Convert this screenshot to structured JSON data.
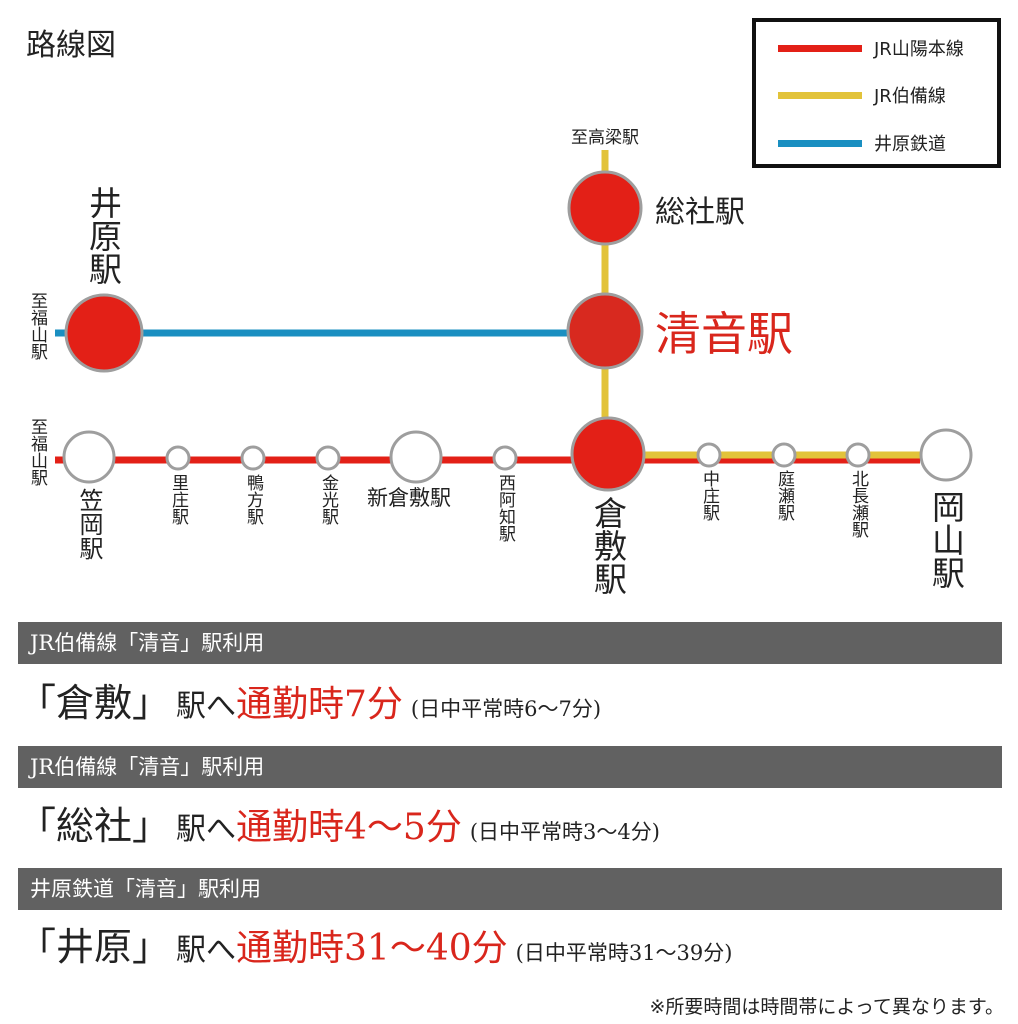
{
  "title": "路線図",
  "legend": {
    "items": [
      {
        "label": "JR山陽本線",
        "color": "#e32017"
      },
      {
        "label": "JR伯備線",
        "color": "#e2c33a"
      },
      {
        "label": "井原鉄道",
        "color": "#1a8fc1"
      }
    ]
  },
  "map": {
    "colors": {
      "sanyo": "#e32017",
      "hakubi": "#e2c33a",
      "ibara": "#1a8fc1",
      "major_station": "#e32017",
      "minor_station": "#ffffff",
      "station_ring": "#9e9e9e",
      "highlight_text": "#d9261c"
    },
    "direction_labels": {
      "takahashi": "至高梁駅",
      "fukuyama_ibara": "至福山駅",
      "fukuyama_sanyo": "至福山駅"
    },
    "stations": {
      "soja": "総社駅",
      "kiyone": "清音駅",
      "ibara": "井原駅",
      "kurashiki": "倉敷駅",
      "kasaoka": "笠岡駅",
      "satosho": "里庄駅",
      "kamogata": "鴨方駅",
      "konko": "金光駅",
      "shinkurashiki": "新倉敷駅",
      "nishiachi": "西阿知駅",
      "nakasho": "中庄駅",
      "niwase": "庭瀬駅",
      "kitanagase": "北長瀬駅",
      "okayama": "岡山駅"
    }
  },
  "routes": [
    {
      "header": "JR伯備線「清音」駅利用",
      "station": "「倉敷」",
      "to": "駅へ",
      "time": "通勤時7分",
      "note": "(日中平常時6〜7分)"
    },
    {
      "header": "JR伯備線「清音」駅利用",
      "station": "「総社」",
      "to": "駅へ",
      "time": "通勤時4〜5分",
      "note": "(日中平常時3〜4分)"
    },
    {
      "header": "井原鉄道「清音」駅利用",
      "station": "「井原」",
      "to": "駅へ",
      "time": "通勤時31〜40分",
      "note": "(日中平常時31〜39分)"
    }
  ],
  "footnote": "※所要時間は時間帯によって異なります。"
}
